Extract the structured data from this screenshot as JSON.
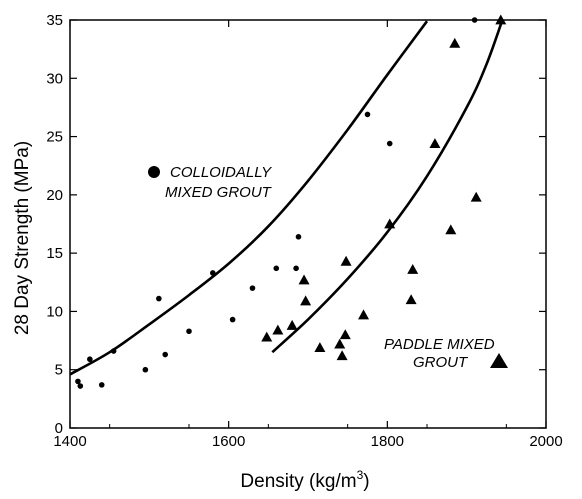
{
  "chart_data": {
    "type": "scatter",
    "xlabel": "Density (kg/m",
    "xlabel_sup": "3",
    "xlabel_close": ")",
    "ylabel": "28 Day Strength (MPa)",
    "xlim": [
      1400,
      2000
    ],
    "ylim": [
      0,
      35
    ],
    "xticks": [
      1400,
      1600,
      1800,
      2000
    ],
    "yticks": [
      0,
      5,
      10,
      15,
      20,
      25,
      30,
      35
    ],
    "grid": false,
    "series": [
      {
        "name": "COLLOIDALLY MIXED GROUT",
        "marker": "circle",
        "points": [
          [
            1410,
            4.0
          ],
          [
            1413,
            3.6
          ],
          [
            1425,
            5.9
          ],
          [
            1440,
            3.7
          ],
          [
            1455,
            6.6
          ],
          [
            1495,
            5.0
          ],
          [
            1512,
            11.1
          ],
          [
            1520,
            6.3
          ],
          [
            1550,
            8.3
          ],
          [
            1580,
            13.3
          ],
          [
            1605,
            9.3
          ],
          [
            1630,
            12.0
          ],
          [
            1660,
            13.7
          ],
          [
            1685,
            13.7
          ],
          [
            1688,
            16.4
          ],
          [
            1775,
            26.9
          ],
          [
            1803,
            24.4
          ],
          [
            1910,
            35.0
          ]
        ]
      },
      {
        "name": "PADDLE MIXED GROUT",
        "marker": "triangle",
        "points": [
          [
            1648,
            7.8
          ],
          [
            1662,
            8.4
          ],
          [
            1680,
            8.8
          ],
          [
            1695,
            12.7
          ],
          [
            1697,
            10.9
          ],
          [
            1715,
            6.9
          ],
          [
            1740,
            7.2
          ],
          [
            1743,
            6.2
          ],
          [
            1747,
            8.0
          ],
          [
            1748,
            14.3
          ],
          [
            1770,
            9.7
          ],
          [
            1803,
            17.5
          ],
          [
            1830,
            11.0
          ],
          [
            1832,
            13.6
          ],
          [
            1860,
            24.4
          ],
          [
            1880,
            17.0
          ],
          [
            1885,
            33.0
          ],
          [
            1912,
            19.8
          ],
          [
            1943,
            35.0
          ]
        ]
      }
    ],
    "curves": [
      {
        "name": "colloidal-fit",
        "points": [
          [
            1400,
            4.6
          ],
          [
            1450,
            6.5
          ],
          [
            1500,
            8.9
          ],
          [
            1550,
            11.4
          ],
          [
            1600,
            14.1
          ],
          [
            1650,
            17.3
          ],
          [
            1700,
            21.2
          ],
          [
            1750,
            25.6
          ],
          [
            1800,
            30.3
          ],
          [
            1850,
            34.9
          ]
        ]
      },
      {
        "name": "paddle-fit",
        "points": [
          [
            1655,
            6.5
          ],
          [
            1700,
            9.3
          ],
          [
            1750,
            12.8
          ],
          [
            1800,
            16.8
          ],
          [
            1850,
            21.6
          ],
          [
            1900,
            27.5
          ],
          [
            1925,
            31.2
          ],
          [
            1945,
            35.0
          ]
        ]
      }
    ],
    "annotations": [
      {
        "lines": [
          "COLLOIDALLY",
          "MIXED GROUT"
        ],
        "marker": "circle"
      },
      {
        "lines": [
          "PADDLE MIXED",
          "GROUT"
        ],
        "marker": "triangle"
      }
    ]
  }
}
